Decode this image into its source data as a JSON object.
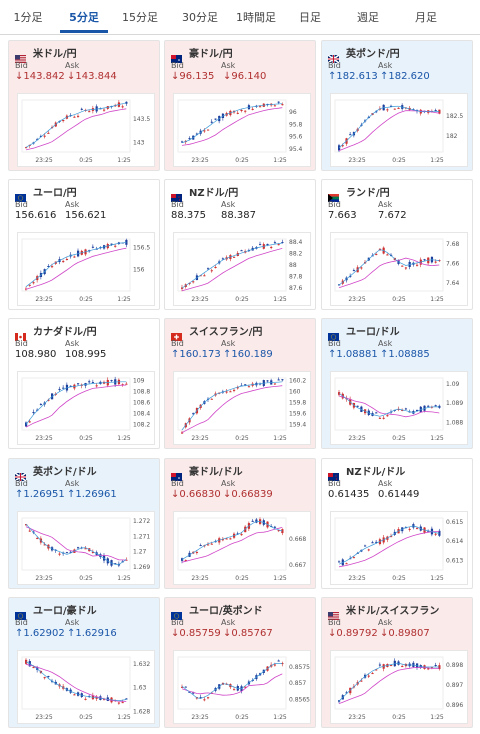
{
  "tabs": [
    "1分足",
    "5分足",
    "15分足",
    "30分足",
    "1時間足",
    "日足",
    "週足",
    "月足"
  ],
  "active_tab": 1,
  "bid_label": "Bid",
  "ask_label": "Ask",
  "x_ticks": [
    "23:25",
    "0:25",
    "1:25"
  ],
  "colors": {
    "up_candle": "#d03030",
    "down_candle": "#1f3f9c",
    "line": "#3a9ad9",
    "ma": "#d046c8",
    "up_text": "#1a56a8",
    "down_text": "#b03030"
  },
  "cards": [
    {
      "name": "米ドル/円",
      "flag": "us",
      "dir": "down",
      "bid": "143.842",
      "ask": "143.844",
      "bg": "neg",
      "trend": [
        142.9,
        143.0,
        143.15,
        143.3,
        143.45,
        143.55,
        143.6,
        143.68,
        143.7,
        143.72,
        143.75,
        143.8,
        143.84
      ],
      "y_ticks": [
        "143.5",
        "143"
      ],
      "y_range": [
        142.8,
        143.9
      ]
    },
    {
      "name": "豪ドル/円",
      "flag": "au",
      "dir": "down",
      "bid": "96.135",
      "ask": "96.140",
      "bg": "neg",
      "trend": [
        95.5,
        95.55,
        95.65,
        95.75,
        95.85,
        95.95,
        96.0,
        96.05,
        96.08,
        96.1,
        96.12,
        96.13,
        96.14
      ],
      "y_ticks": [
        "96",
        "95.8",
        "95.6",
        "95.4"
      ],
      "y_range": [
        95.35,
        96.2
      ]
    },
    {
      "name": "英ポンド/円",
      "flag": "uk",
      "dir": "up",
      "bid": "182.613",
      "ask": "182.620",
      "bg": "pos",
      "trend": [
        181.7,
        181.9,
        182.1,
        182.35,
        182.55,
        182.7,
        182.72,
        182.75,
        182.7,
        182.65,
        182.6,
        182.62,
        182.61
      ],
      "y_ticks": [
        "182.5",
        "182"
      ],
      "y_range": [
        181.6,
        182.9
      ]
    },
    {
      "name": "ユーロ/円",
      "flag": "eu",
      "dir": "flat",
      "bid": "156.616",
      "ask": "156.621",
      "bg": "flat",
      "trend": [
        155.6,
        155.75,
        155.9,
        156.1,
        156.2,
        156.3,
        156.35,
        156.4,
        156.45,
        156.5,
        156.55,
        156.6,
        156.62
      ],
      "y_ticks": [
        "156.5",
        "156"
      ],
      "y_range": [
        155.5,
        156.7
      ]
    },
    {
      "name": "NZドル/円",
      "flag": "nz",
      "dir": "flat",
      "bid": "88.375",
      "ask": "88.387",
      "bg": "flat",
      "trend": [
        87.6,
        87.7,
        87.8,
        87.9,
        88.0,
        88.1,
        88.15,
        88.2,
        88.25,
        88.3,
        88.33,
        88.36,
        88.38
      ],
      "y_ticks": [
        "88.4",
        "88.2",
        "88",
        "87.8",
        "87.6"
      ],
      "y_range": [
        87.55,
        88.45
      ]
    },
    {
      "name": "ランド/円",
      "flag": "za",
      "dir": "flat",
      "bid": "7.663",
      "ask": "7.672",
      "bg": "flat",
      "trend": [
        7.638,
        7.645,
        7.652,
        7.66,
        7.668,
        7.675,
        7.67,
        7.662,
        7.658,
        7.66,
        7.662,
        7.664,
        7.663
      ],
      "y_ticks": [
        "7.68",
        "7.66",
        "7.64"
      ],
      "y_range": [
        7.632,
        7.685
      ]
    },
    {
      "name": "カナダドル/円",
      "flag": "ca",
      "dir": "flat",
      "bid": "108.980",
      "ask": "108.995",
      "bg": "flat",
      "trend": [
        108.2,
        108.4,
        108.55,
        108.7,
        108.8,
        108.88,
        108.9,
        108.93,
        108.95,
        108.96,
        108.97,
        108.98,
        108.98
      ],
      "y_ticks": [
        "109",
        "108.8",
        "108.6",
        "108.4",
        "108.2"
      ],
      "y_range": [
        108.1,
        109.05
      ]
    },
    {
      "name": "スイスフラン/円",
      "flag": "ch",
      "dir": "up",
      "bid": "160.173",
      "ask": "160.189",
      "bg": "neg",
      "trend": [
        159.3,
        159.5,
        159.7,
        159.85,
        159.95,
        160.0,
        160.05,
        160.1,
        160.12,
        160.14,
        160.16,
        160.17,
        160.18
      ],
      "y_ticks": [
        "160.2",
        "160",
        "159.8",
        "159.6",
        "159.4"
      ],
      "y_range": [
        159.3,
        160.25
      ]
    },
    {
      "name": "ユーロ/ドル",
      "flag": "eu",
      "dir": "up",
      "bid": "1.08881",
      "ask": "1.08885",
      "bg": "pos",
      "trend": [
        1.0895,
        1.0892,
        1.0888,
        1.0886,
        1.0884,
        1.0883,
        1.0885,
        1.0887,
        1.0886,
        1.0885,
        1.0887,
        1.0888,
        1.0888
      ],
      "y_ticks": [
        "1.09",
        "1.089",
        "1.088"
      ],
      "y_range": [
        1.0876,
        1.0903
      ]
    },
    {
      "name": "英ポンド/ドル",
      "flag": "uk",
      "dir": "up",
      "bid": "1.26951",
      "ask": "1.26961",
      "bg": "pos",
      "trend": [
        1.2718,
        1.2712,
        1.2706,
        1.2702,
        1.27,
        1.2698,
        1.2701,
        1.2703,
        1.27,
        1.2697,
        1.2693,
        1.2691,
        1.2695
      ],
      "y_ticks": [
        "1.272",
        "1.271",
        "1.27",
        "1.269"
      ],
      "y_range": [
        1.2688,
        1.2722
      ]
    },
    {
      "name": "豪ドル/ドル",
      "flag": "au",
      "dir": "down",
      "bid": "0.66830",
      "ask": "0.66839",
      "bg": "neg",
      "trend": [
        0.6672,
        0.6674,
        0.6676,
        0.6678,
        0.6679,
        0.668,
        0.6681,
        0.6682,
        0.6685,
        0.6687,
        0.6686,
        0.6684,
        0.6683
      ],
      "y_ticks": [
        "0.668",
        "0.667"
      ],
      "y_range": [
        0.6668,
        0.6688
      ]
    },
    {
      "name": "NZドル/ドル",
      "flag": "nz",
      "dir": "flat",
      "bid": "0.61435",
      "ask": "0.61449",
      "bg": "flat",
      "trend": [
        0.6128,
        0.613,
        0.6133,
        0.6136,
        0.6138,
        0.614,
        0.6142,
        0.6145,
        0.6147,
        0.6148,
        0.6146,
        0.6145,
        0.6144
      ],
      "y_ticks": [
        "0.615",
        "0.614",
        "0.613"
      ],
      "y_range": [
        0.6125,
        0.6152
      ]
    },
    {
      "name": "ユーロ/豪ドル",
      "flag": "eu",
      "dir": "up",
      "bid": "1.62902",
      "ask": "1.62916",
      "bg": "pos",
      "trend": [
        1.6322,
        1.6318,
        1.6312,
        1.6306,
        1.6302,
        1.6298,
        1.6295,
        1.6293,
        1.6292,
        1.6291,
        1.629,
        1.6289,
        1.629
      ],
      "y_ticks": [
        "1.632",
        "1.63",
        "1.628"
      ],
      "y_range": [
        1.6282,
        1.6326
      ]
    },
    {
      "name": "ユーロ/英ポンド",
      "flag": "eu",
      "dir": "down",
      "bid": "0.85759",
      "ask": "0.85767",
      "bg": "neg",
      "trend": [
        0.8569,
        0.8567,
        0.8565,
        0.8566,
        0.8568,
        0.857,
        0.8569,
        0.8568,
        0.857,
        0.8572,
        0.8574,
        0.8576,
        0.8576
      ],
      "y_ticks": [
        "0.8575",
        "0.857",
        "0.8565"
      ],
      "y_range": [
        0.8562,
        0.8578
      ]
    },
    {
      "name": "米ドル/スイスフラン",
      "flag": "us",
      "dir": "down",
      "bid": "0.89792",
      "ask": "0.89807",
      "bg": "neg",
      "trend": [
        0.8962,
        0.8966,
        0.897,
        0.8974,
        0.8977,
        0.8979,
        0.898,
        0.8981,
        0.898,
        0.898,
        0.8979,
        0.8979,
        0.8979
      ],
      "y_ticks": [
        "0.898",
        "0.897",
        "0.896"
      ],
      "y_range": [
        0.8958,
        0.8984
      ]
    }
  ]
}
